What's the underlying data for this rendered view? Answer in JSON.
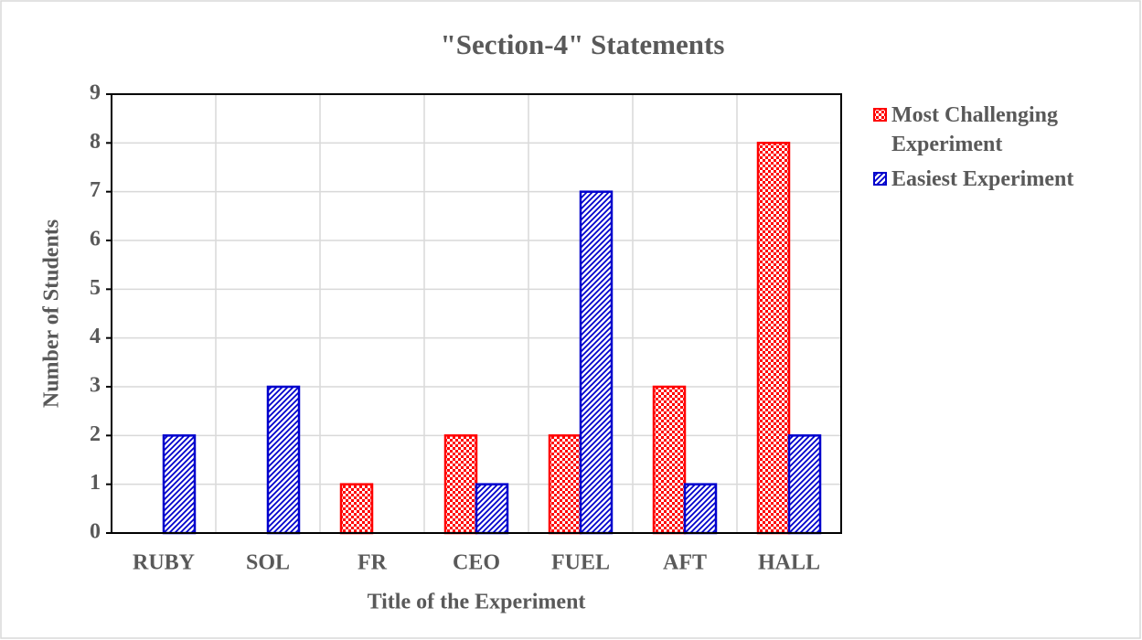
{
  "chart_data": {
    "type": "bar",
    "title": "\"Section-4\" Statements",
    "x_label": "Title of the Experiment",
    "y_label": "Number of Students",
    "categories": [
      "RUBY",
      "SOL",
      "FR",
      "CEO",
      "FUEL",
      "AFT",
      "HALL"
    ],
    "series": [
      {
        "name": "Most Challenging Experiment",
        "color": "#ff0000",
        "pattern": "checker",
        "values": [
          0,
          0,
          1,
          2,
          2,
          3,
          8
        ]
      },
      {
        "name": "Easiest Experiment",
        "color": "#0000cc",
        "pattern": "hatch",
        "values": [
          2,
          3,
          0,
          1,
          7,
          1,
          2
        ]
      }
    ],
    "ylim": [
      0,
      9
    ],
    "yticks": [
      0,
      1,
      2,
      3,
      4,
      5,
      6,
      7,
      8,
      9
    ],
    "grid": true,
    "legend": "right"
  }
}
